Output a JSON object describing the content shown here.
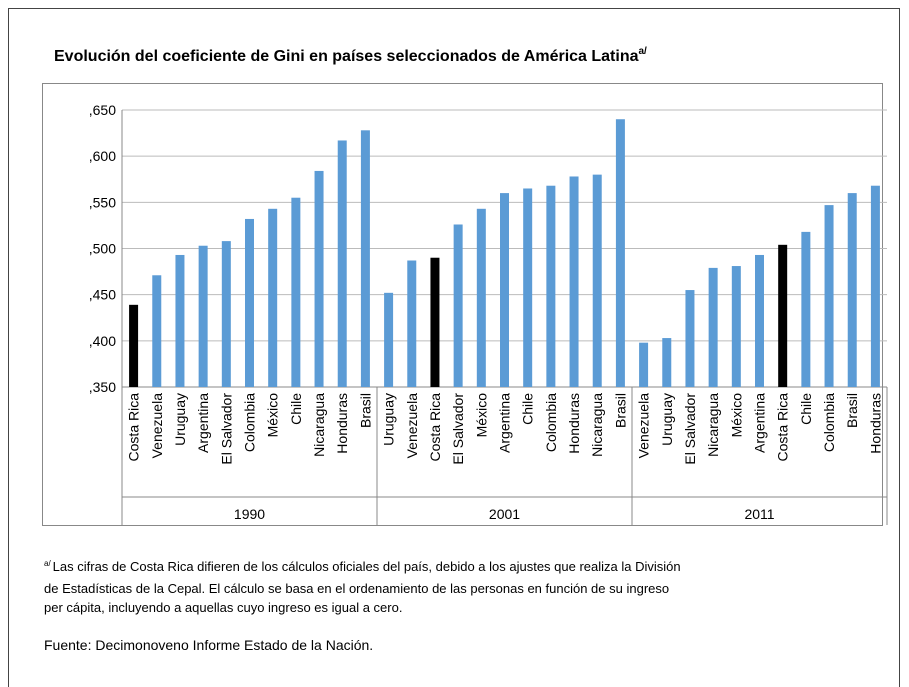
{
  "chart_data": {
    "type": "bar",
    "title": "Evolución del coeficiente de Gini en países seleccionados de América Latina",
    "title_note": "a/",
    "ylim": [
      0.35,
      0.65
    ],
    "yticks": [
      {
        "value": 0.35,
        "label": ",350"
      },
      {
        "value": 0.4,
        "label": ",400"
      },
      {
        "value": 0.45,
        "label": ",450"
      },
      {
        "value": 0.5,
        "label": ",500"
      },
      {
        "value": 0.55,
        "label": ",550"
      },
      {
        "value": 0.6,
        "label": ",600"
      },
      {
        "value": 0.65,
        "label": ",650"
      }
    ],
    "grid": true,
    "groups": [
      {
        "name": "1990",
        "categories": [
          "Costa Rica",
          "Venezuela",
          "Uruguay",
          "Argentina",
          "El Salvador",
          "Colombia",
          "México",
          "Chile",
          "Nicaragua",
          "Honduras",
          "Brasil"
        ],
        "values": [
          0.439,
          0.471,
          0.493,
          0.503,
          0.508,
          0.532,
          0.543,
          0.555,
          0.584,
          0.617,
          0.628
        ],
        "colors": [
          "#000000",
          "#5b9bd5",
          "#5b9bd5",
          "#5b9bd5",
          "#5b9bd5",
          "#5b9bd5",
          "#5b9bd5",
          "#5b9bd5",
          "#5b9bd5",
          "#5b9bd5",
          "#5b9bd5"
        ]
      },
      {
        "name": "2001",
        "categories": [
          "Uruguay",
          "Venezuela",
          "Costa Rica",
          "El Salvador",
          "México",
          "Argentina",
          "Chile",
          "Colombia",
          "Honduras",
          "Nicaragua",
          "Brasil"
        ],
        "values": [
          0.452,
          0.487,
          0.49,
          0.526,
          0.543,
          0.56,
          0.565,
          0.568,
          0.578,
          0.58,
          0.64
        ],
        "colors": [
          "#5b9bd5",
          "#5b9bd5",
          "#000000",
          "#5b9bd5",
          "#5b9bd5",
          "#5b9bd5",
          "#5b9bd5",
          "#5b9bd5",
          "#5b9bd5",
          "#5b9bd5",
          "#5b9bd5"
        ]
      },
      {
        "name": "2011",
        "categories": [
          "Venezuela",
          "Uruguay",
          "El Salvador",
          "Nicaragua",
          "México",
          "Argentina",
          "Costa Rica",
          "Chile",
          "Colombia",
          "Brasil",
          "Honduras"
        ],
        "values": [
          0.398,
          0.403,
          0.455,
          0.479,
          0.481,
          0.493,
          0.504,
          0.518,
          0.547,
          0.56,
          0.568
        ],
        "colors": [
          "#5b9bd5",
          "#5b9bd5",
          "#5b9bd5",
          "#5b9bd5",
          "#5b9bd5",
          "#5b9bd5",
          "#000000",
          "#5b9bd5",
          "#5b9bd5",
          "#5b9bd5",
          "#5b9bd5"
        ]
      }
    ]
  },
  "footnote": {
    "marker": "a/",
    "lines": [
      "Las cifras de Costa Rica difieren de los cálculos oficiales del país, debido a los ajustes que realiza la División",
      "de Estadísticas de la Cepal. El cálculo se basa en el ordenamiento de las personas en función de su ingreso",
      "per cápita, incluyendo a aquellas cuyo ingreso es igual a cero."
    ]
  },
  "source": "Fuente: Decimonoveno Informe Estado de la Nación."
}
